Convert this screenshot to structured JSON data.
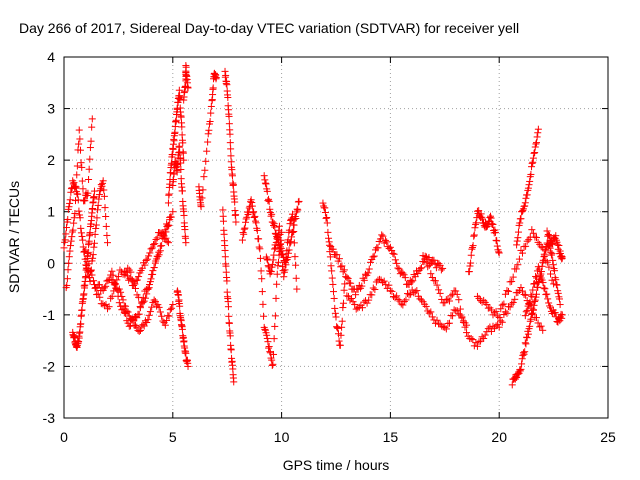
{
  "chart_data": {
    "type": "scatter",
    "title": "Day 266 of 2017, Sidereal Day-to-day VTEC variation (SDTVAR) for receiver yell",
    "xlabel": "GPS time / hours",
    "ylabel": "SDTVAR / TECUs",
    "xlim": [
      0,
      25
    ],
    "ylim": [
      -3,
      4
    ],
    "xticks": [
      0,
      5,
      10,
      15,
      20,
      25
    ],
    "yticks": [
      -3,
      -2,
      -1,
      0,
      1,
      2,
      3,
      4
    ],
    "grid": true,
    "marker": "+",
    "series": [
      {
        "name": "SDTVAR",
        "color": "#ff0000",
        "segments": [
          {
            "x": [
              0.0,
              0.2,
              0.4,
              0.6,
              0.8,
              1.0,
              1.2,
              1.4,
              1.6,
              1.8,
              2.0
            ],
            "y": [
              0.3,
              1.0,
              1.6,
              1.4,
              0.6,
              0.0,
              -0.3,
              0.4,
              1.3,
              1.6,
              0.4
            ]
          },
          {
            "x": [
              0.1,
              0.3,
              0.5,
              0.7,
              0.9,
              1.1,
              1.3
            ],
            "y": [
              -0.5,
              0.3,
              1.0,
              2.6,
              1.2,
              1.4,
              2.8
            ]
          },
          {
            "x": [
              0.4,
              0.5,
              0.6,
              0.7,
              0.8,
              0.9,
              1.0,
              1.1,
              1.2,
              1.3,
              1.4
            ],
            "y": [
              -1.3,
              -1.5,
              -1.6,
              -1.4,
              -1.0,
              -0.6,
              -0.2,
              0.2,
              0.6,
              1.0,
              1.4
            ]
          },
          {
            "x": [
              1.0,
              1.5,
              2.0,
              2.5,
              3.0,
              3.5,
              4.0,
              4.5,
              5.0
            ],
            "y": [
              0.2,
              -0.6,
              -0.9,
              -0.2,
              -0.1,
              -0.8,
              -0.3,
              0.5,
              1.0
            ]
          },
          {
            "x": [
              1.4,
              1.8,
              2.2,
              2.6,
              3.0,
              3.4,
              3.8,
              4.2,
              4.6,
              4.9
            ],
            "y": [
              -0.4,
              -0.5,
              -0.2,
              -0.8,
              -1.2,
              -1.0,
              -0.6,
              0.0,
              0.5,
              0.9
            ]
          },
          {
            "x": [
              2.2,
              2.6,
              3.0,
              3.4,
              3.8,
              4.2,
              4.6,
              5.0
            ],
            "y": [
              -0.3,
              -0.6,
              -1.0,
              -1.3,
              -1.1,
              -0.7,
              -1.2,
              -0.8
            ]
          },
          {
            "x": [
              2.8,
              3.2,
              3.6,
              4.0,
              4.4,
              4.8
            ],
            "y": [
              -0.2,
              -0.4,
              -0.1,
              0.3,
              0.6,
              0.4
            ]
          },
          {
            "x": [
              4.8,
              4.9,
              5.0,
              5.1,
              5.2,
              5.3,
              5.4,
              5.5
            ],
            "y": [
              1.2,
              1.8,
              2.2,
              2.6,
              3.0,
              3.3,
              2.7,
              2.0
            ]
          },
          {
            "x": [
              5.0,
              5.1,
              5.2,
              5.3,
              5.4,
              5.5,
              5.6
            ],
            "y": [
              1.5,
              2.0,
              1.8,
              2.3,
              1.6,
              1.0,
              0.4
            ]
          },
          {
            "x": [
              5.2,
              5.3,
              5.4,
              5.5,
              5.6,
              5.7
            ],
            "y": [
              -0.5,
              -0.8,
              -1.2,
              -1.5,
              -1.8,
              -2.0
            ]
          },
          {
            "x": [
              5.5,
              5.6,
              5.6,
              5.7
            ],
            "y": [
              3.2,
              3.5,
              3.8,
              3.4
            ]
          },
          {
            "x": [
              6.2,
              6.3,
              6.6,
              6.8,
              6.9,
              7.0
            ],
            "y": [
              1.5,
              1.1,
              2.4,
              3.1,
              3.7,
              3.6
            ]
          },
          {
            "x": [
              7.3,
              7.4,
              7.5,
              7.6,
              7.7,
              7.8
            ],
            "y": [
              1.0,
              0.2,
              -0.5,
              -1.2,
              -1.8,
              -2.3
            ]
          },
          {
            "x": [
              7.4,
              7.5,
              7.6,
              7.7,
              7.8,
              7.9
            ],
            "y": [
              3.7,
              3.4,
              2.7,
              1.9,
              1.4,
              0.8
            ]
          },
          {
            "x": [
              8.2,
              8.4,
              8.6,
              8.8,
              9.0,
              9.2,
              9.4,
              9.6,
              9.8,
              10.0
            ],
            "y": [
              0.5,
              0.9,
              1.2,
              0.8,
              0.3,
              -1.2,
              -1.6,
              -2.0,
              -0.2,
              0.6
            ]
          },
          {
            "x": [
              9.2,
              9.4,
              9.6,
              9.8,
              10.0,
              10.2,
              10.4,
              10.6,
              10.8
            ],
            "y": [
              1.7,
              1.2,
              0.8,
              0.5,
              0.2,
              0.0,
              0.4,
              0.8,
              1.2
            ]
          },
          {
            "x": [
              9.3,
              9.5,
              9.7,
              9.9,
              10.1,
              10.3,
              10.5,
              10.7
            ],
            "y": [
              0.1,
              -0.2,
              0.3,
              0.7,
              -0.3,
              0.5,
              1.0,
              -0.5
            ]
          },
          {
            "x": [
              11.9,
              12.1,
              12.3,
              12.5,
              12.7,
              12.9
            ],
            "y": [
              1.2,
              0.8,
              -0.2,
              -1.1,
              -1.6,
              -0.4
            ]
          },
          {
            "x": [
              12.2,
              12.6,
              13.0,
              13.4,
              13.8,
              14.2,
              14.6,
              15.0,
              15.4,
              15.8,
              16.2,
              16.6,
              17.0,
              17.4
            ],
            "y": [
              0.4,
              0.1,
              -0.3,
              -0.6,
              -0.3,
              0.1,
              0.5,
              0.3,
              -0.1,
              -0.4,
              -0.2,
              0.1,
              0.0,
              -0.1
            ]
          },
          {
            "x": [
              13.0,
              13.5,
              14.0,
              14.5,
              15.0,
              15.5,
              16.0,
              16.5,
              17.0,
              17.5,
              18.0,
              18.5
            ],
            "y": [
              -0.6,
              -0.9,
              -0.7,
              -0.3,
              -0.5,
              -0.8,
              -0.5,
              -0.7,
              -1.1,
              -1.3,
              -0.9,
              -1.2
            ]
          },
          {
            "x": [
              16.5,
              17.0,
              17.5,
              18.0,
              18.5,
              19.0,
              19.5,
              20.0,
              20.5,
              21.0,
              21.5,
              22.0
            ],
            "y": [
              0.2,
              -0.3,
              -0.8,
              -0.5,
              -1.4,
              -1.6,
              -1.3,
              -1.2,
              -0.8,
              -0.5,
              -0.9,
              -1.3
            ]
          },
          {
            "x": [
              18.6,
              18.8,
              19.0,
              19.2,
              19.4,
              19.6,
              19.8,
              20.0
            ],
            "y": [
              -0.2,
              0.4,
              1.0,
              0.9,
              0.7,
              0.9,
              0.6,
              0.2
            ]
          },
          {
            "x": [
              19.0,
              19.5,
              20.0,
              20.5,
              21.0,
              21.5,
              22.0,
              22.5
            ],
            "y": [
              -0.6,
              -0.9,
              -1.0,
              -0.4,
              0.2,
              0.6,
              0.3,
              -0.4
            ]
          },
          {
            "x": [
              20.6,
              20.8,
              21.0,
              21.2,
              21.4,
              21.6,
              21.8,
              22.0,
              22.2,
              22.4,
              22.6,
              22.8
            ],
            "y": [
              -2.3,
              -2.2,
              -2.0,
              -1.6,
              -1.2,
              -0.8,
              -0.4,
              0.0,
              0.4,
              0.2,
              -0.3,
              -0.8
            ]
          },
          {
            "x": [
              20.8,
              21.0,
              21.2,
              21.4,
              21.6,
              21.8
            ],
            "y": [
              0.4,
              0.9,
              1.2,
              1.6,
              2.1,
              2.6
            ]
          },
          {
            "x": [
              21.2,
              21.5,
              21.8,
              22.1,
              22.4,
              22.7,
              22.9
            ],
            "y": [
              -1.0,
              -0.6,
              -0.1,
              -0.5,
              -0.9,
              -1.1,
              -1.0
            ]
          },
          {
            "x": [
              22.2,
              22.4,
              22.6,
              22.8,
              22.9
            ],
            "y": [
              0.6,
              0.4,
              0.5,
              0.2,
              0.1
            ]
          }
        ]
      }
    ]
  }
}
